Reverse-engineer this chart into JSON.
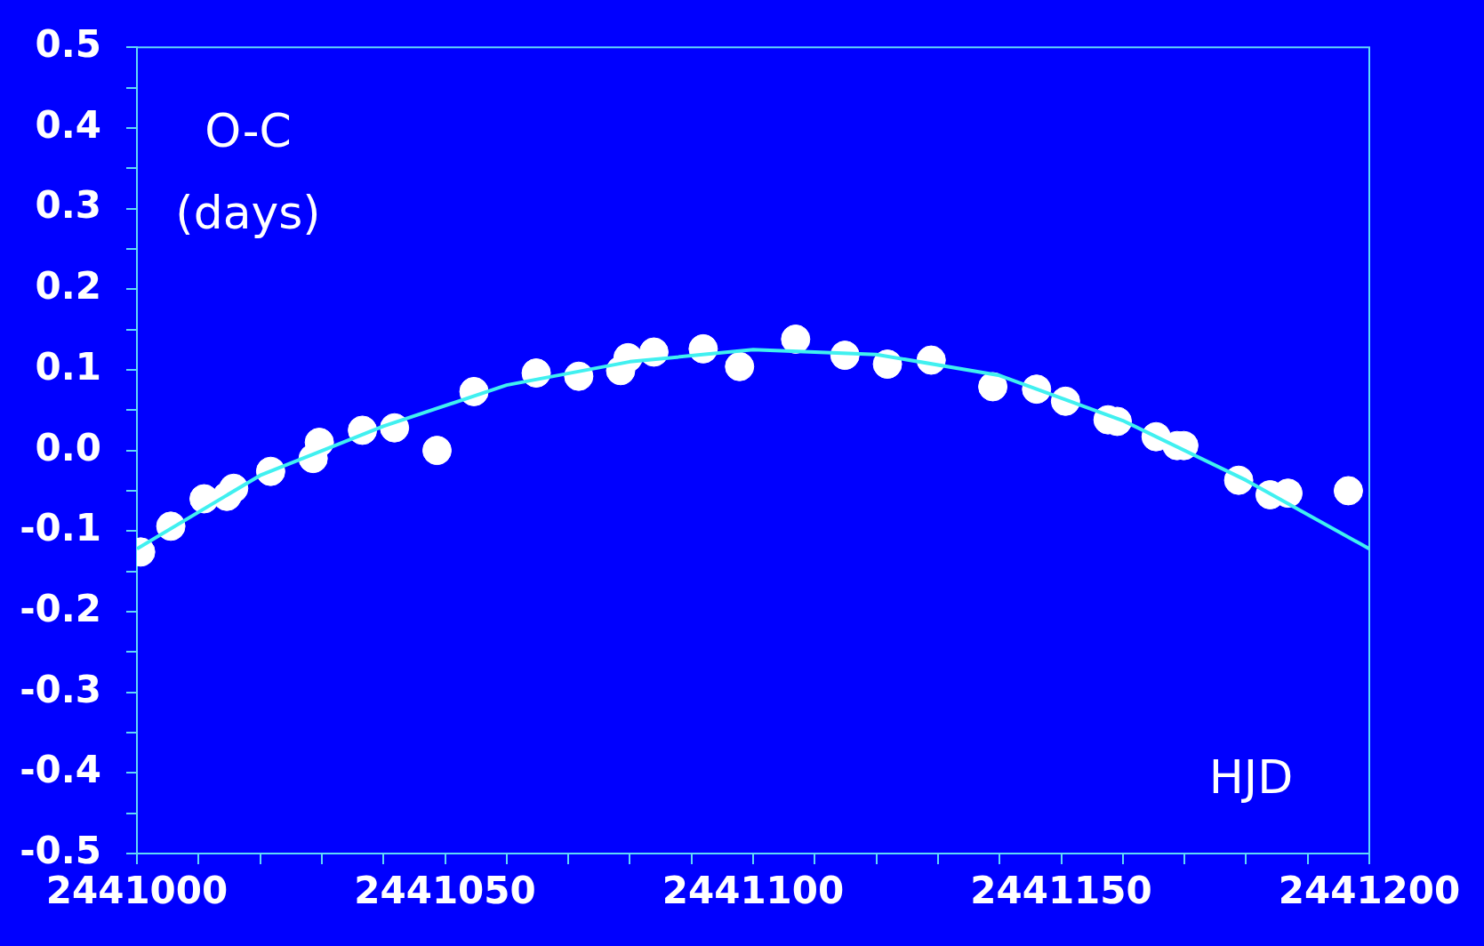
{
  "chart_data": {
    "type": "scatter",
    "xlabel": "HJD",
    "ylabel": "O-C (days)",
    "xlim": [
      2441000,
      2441200
    ],
    "xticks": [
      2441000,
      {
        "value": 2441010,
        "label": null
      },
      {
        "value": 2441020,
        "label": null
      },
      {
        "value": 2441030,
        "label": null
      },
      {
        "value": 2441040,
        "label": null
      },
      2441050,
      {
        "value": 2441060,
        "label": null
      },
      {
        "value": 2441070,
        "label": null
      },
      {
        "value": 2441080,
        "label": null
      },
      {
        "value": 2441090,
        "label": null
      },
      2441100,
      {
        "value": 2441110,
        "label": null
      },
      {
        "value": 2441120,
        "label": null
      },
      {
        "value": 2441130,
        "label": null
      },
      {
        "value": 2441140,
        "label": null
      },
      2441150,
      {
        "value": 2441160,
        "label": null
      },
      {
        "value": 2441170,
        "label": null
      },
      {
        "value": 2441180,
        "label": null
      },
      {
        "value": 2441190,
        "label": null
      },
      2441200
    ],
    "ylim": [
      -0.5,
      0.5
    ],
    "yticks": [
      -0.5,
      {
        "value": -0.45,
        "label": null
      },
      -0.4,
      {
        "value": -0.35,
        "label": null
      },
      -0.3,
      {
        "value": -0.25,
        "label": null
      },
      -0.2,
      {
        "value": -0.15,
        "label": null
      },
      -0.1,
      {
        "value": -0.05,
        "label": null
      },
      {
        "value": 0,
        "label": "0.0"
      },
      {
        "value": 0.05,
        "label": null
      },
      0.1,
      {
        "value": 0.15,
        "label": null
      },
      0.2,
      {
        "value": 0.25,
        "label": null
      },
      0.3,
      {
        "value": 0.35,
        "label": null
      },
      0.4,
      {
        "value": 0.45,
        "label": null
      },
      0.5
    ],
    "series": [
      {
        "type": "line",
        "color": "#40f0f0",
        "marker": "none",
        "x": [
          2441000,
          2441020,
          2441040,
          2441060,
          2441080,
          2441100,
          2441120,
          2441140,
          2441160,
          2441180,
          2441200
        ],
        "values": [
          -0.122,
          -0.031,
          0.03,
          0.081,
          0.11,
          0.125,
          0.119,
          0.093,
          0.037,
          -0.037,
          -0.122
        ]
      },
      {
        "color": "#ffffff",
        "marker": "circle",
        "x": [
          2441000.6,
          2441005.5,
          2441010.9,
          2441014.6,
          2441015.7,
          2441021.7,
          2441028.6,
          2441029.6,
          2441036.6,
          2441041.8,
          2441048.7,
          2441054.7,
          2441064.8,
          2441071.7,
          2441078.5,
          2441079.7,
          2441083.9,
          2441091.9,
          2441097.8,
          2441106.9,
          2441114.9,
          2441121.8,
          2441128.9,
          2441138.9,
          2441146,
          2441150.7,
          2441157.6,
          2441159.1,
          2441165.4,
          2441168.8,
          2441169.9,
          2441178.8,
          2441183.9,
          2441186.8,
          2441196.6
        ],
        "values": [
          -0.126,
          -0.094,
          -0.06,
          -0.057,
          -0.047,
          -0.026,
          -0.01,
          0.01,
          0.025,
          0.028,
          0,
          0.073,
          0.096,
          0.092,
          0.099,
          0.115,
          0.122,
          0.126,
          0.104,
          0.138,
          0.118,
          0.107,
          0.112,
          0.079,
          0.076,
          0.061,
          0.038,
          0.036,
          0.017,
          0.006,
          0.006,
          -0.037,
          -0.055,
          -0.053,
          -0.05
        ]
      }
    ]
  }
}
